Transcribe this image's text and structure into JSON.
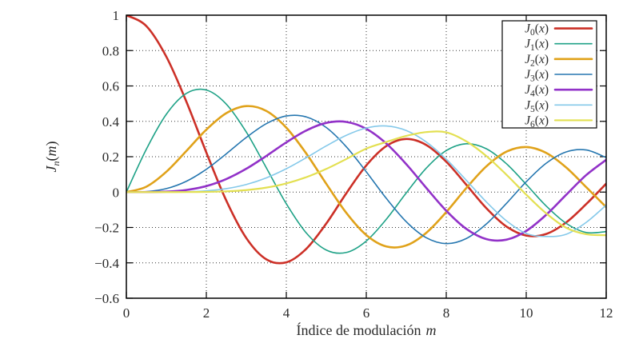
{
  "chart_data": {
    "type": "line",
    "title": "",
    "xlabel_text": "Índice de modulación",
    "xlabel_var": "m",
    "xlabel": "Índice de modulación m",
    "ylabel": {
      "base": "J",
      "sub": "n",
      "open": "(",
      "var": "m",
      "close": ")"
    },
    "ylabel_flat": "J_n(m)",
    "xlim": [
      0,
      12
    ],
    "ylim": [
      -0.6,
      1
    ],
    "xtick_values": [
      0,
      2,
      4,
      6,
      8,
      10,
      12
    ],
    "xtick_labels": [
      "0",
      "2",
      "4",
      "6",
      "8",
      "10",
      "12"
    ],
    "ytick_values": [
      1,
      0.8,
      0.6,
      0.4,
      0.2,
      0,
      -0.2,
      -0.4,
      -0.6
    ],
    "ytick_labels": [
      "1",
      "0.8",
      "0.6",
      "0.4",
      "0.2",
      "0",
      "−0.2",
      "−0.4",
      "−0.6"
    ],
    "grid": true,
    "grid_style": "dotted",
    "legend_position": "top-right",
    "axis_color": "#000000",
    "grid_color": "#333333",
    "text_color": "#2a2a2a",
    "background_color": "#ffffff",
    "x": [
      0,
      0.5,
      1,
      1.5,
      2,
      2.5,
      3,
      3.5,
      4,
      4.5,
      5,
      5.5,
      6,
      6.5,
      7,
      7.5,
      8,
      8.5,
      9,
      9.5,
      10,
      10.5,
      11,
      11.5,
      12
    ],
    "series": [
      {
        "name": "J_0(x)",
        "color": "#cc3027",
        "line_width": 2.6,
        "values": [
          1.0,
          0.9385,
          0.7652,
          0.5118,
          0.2239,
          -0.0484,
          -0.2601,
          -0.3801,
          -0.3971,
          -0.3205,
          -0.1776,
          -0.0068,
          0.1506,
          0.2601,
          0.3001,
          0.2663,
          0.1717,
          0.0419,
          -0.0903,
          -0.1939,
          -0.2459,
          -0.2366,
          -0.1712,
          -0.0677,
          0.0477
        ]
      },
      {
        "name": "J_1(x)",
        "color": "#1fa287",
        "line_width": 1.6,
        "values": [
          0,
          0.2423,
          0.4401,
          0.5579,
          0.5767,
          0.4971,
          0.3391,
          0.1374,
          -0.066,
          -0.2311,
          -0.3276,
          -0.3414,
          -0.2767,
          -0.1538,
          -0.0047,
          0.1352,
          0.2346,
          0.2731,
          0.2453,
          0.1613,
          0.0435,
          -0.0789,
          -0.1768,
          -0.2284,
          -0.2234
        ]
      },
      {
        "name": "J_2(x)",
        "color": "#e0a21a",
        "line_width": 2.6,
        "values": [
          0,
          0.0306,
          0.1149,
          0.2321,
          0.3528,
          0.4461,
          0.4861,
          0.4586,
          0.3641,
          0.2178,
          0.0466,
          -0.1173,
          -0.2429,
          -0.3074,
          -0.3014,
          -0.2303,
          -0.113,
          0.0223,
          0.1448,
          0.2279,
          0.2546,
          0.2216,
          0.139,
          0.0279,
          -0.0849
        ]
      },
      {
        "name": "J_3(x)",
        "color": "#2677b0",
        "line_width": 1.6,
        "values": [
          0,
          0.0026,
          0.0196,
          0.061,
          0.1289,
          0.2166,
          0.3091,
          0.3868,
          0.4302,
          0.4247,
          0.3648,
          0.2561,
          0.1148,
          -0.0353,
          -0.1676,
          -0.2581,
          -0.2911,
          -0.2626,
          -0.1809,
          -0.0653,
          0.0584,
          0.1633,
          0.2273,
          0.2381,
          0.1951
        ]
      },
      {
        "name": "J_4(x)",
        "color": "#9232c8",
        "line_width": 2.6,
        "values": [
          0,
          0.0002,
          0.0025,
          0.0118,
          0.034,
          0.0738,
          0.132,
          0.2044,
          0.2811,
          0.3484,
          0.3912,
          0.3967,
          0.3576,
          0.2748,
          0.1578,
          0.0238,
          -0.1054,
          -0.2077,
          -0.2655,
          -0.2691,
          -0.2196,
          -0.1283,
          -0.015,
          0.0963,
          0.1825
        ]
      },
      {
        "name": "J_5(x)",
        "color": "#85c9ea",
        "line_width": 1.6,
        "values": [
          0,
          0.0,
          0.0002,
          0.0018,
          0.007,
          0.0195,
          0.043,
          0.0804,
          0.1321,
          0.1947,
          0.2611,
          0.3209,
          0.3621,
          0.3736,
          0.3479,
          0.2833,
          0.1858,
          0.0671,
          -0.055,
          -0.1613,
          -0.2341,
          -0.2511,
          -0.2383,
          -0.1711,
          -0.0735
        ]
      },
      {
        "name": "J_6(x)",
        "color": "#e3e052",
        "line_width": 2.2,
        "values": [
          0,
          0.0,
          0.0,
          0.0002,
          0.0012,
          0.0042,
          0.0114,
          0.0254,
          0.0491,
          0.0843,
          0.131,
          0.1868,
          0.2458,
          0.2833,
          0.3176,
          0.3392,
          0.3376,
          0.287,
          0.2043,
          0.0993,
          -0.0145,
          -0.1203,
          -0.2016,
          -0.238,
          -0.2437
        ]
      }
    ]
  }
}
